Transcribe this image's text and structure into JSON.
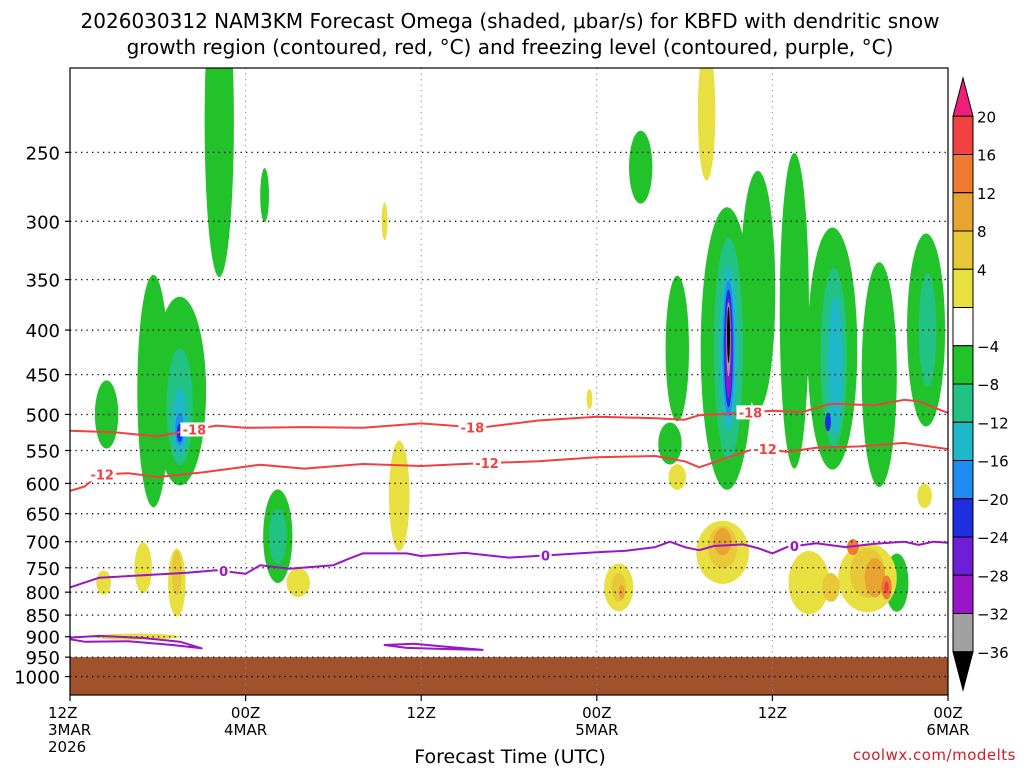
{
  "chart_data": {
    "type": "heatmap",
    "title": {
      "line1": "2026030312 NAM3KM Forecast Omega (shaded, μbar/s) for KBFD with dendritic snow",
      "line2": "growth region (contoured, red, °C) and freezing level (contoured, purple, °C)"
    },
    "xlabel": "Forecast Time (UTC)",
    "credit": "coolwx.com/modelts",
    "x_range_hours": [
      0,
      60
    ],
    "x_ticks": [
      {
        "hour": 0,
        "lines": [
          "12Z",
          "3MAR",
          "2026"
        ]
      },
      {
        "hour": 12,
        "lines": [
          "00Z",
          "4MAR"
        ]
      },
      {
        "hour": 24,
        "lines": [
          "12Z"
        ]
      },
      {
        "hour": 36,
        "lines": [
          "00Z",
          "5MAR"
        ]
      },
      {
        "hour": 48,
        "lines": [
          "12Z"
        ]
      },
      {
        "hour": 60,
        "lines": [
          "00Z",
          "6MAR"
        ]
      }
    ],
    "y_axis": {
      "scale": "log",
      "range_hpa": [
        1050,
        200
      ],
      "ticks": [
        250,
        300,
        350,
        400,
        450,
        500,
        550,
        600,
        650,
        700,
        750,
        800,
        850,
        900,
        950,
        1000
      ]
    },
    "grid": true,
    "colorbar": {
      "labels": [
        "20",
        "16",
        "12",
        "8",
        "4",
        "−4",
        "−8",
        "−12",
        "−16",
        "−20",
        "−24",
        "−28",
        "−32",
        "−36"
      ],
      "colors": [
        "#f0207a",
        "#f04040",
        "#f07a30",
        "#e8a430",
        "#e8c838",
        "#e8e040",
        "#ffffff",
        "#22c22a",
        "#22c285",
        "#1eb8c8",
        "#1e8cf0",
        "#1e2ee0",
        "#6e1ed8",
        "#9a14c8",
        "#a0a0a0",
        "#000000"
      ]
    },
    "ground": {
      "color": "#a0522d",
      "top_hpa": 950
    },
    "contours": [
      {
        "group": "dendritic",
        "color": "#f04040",
        "label": "-18",
        "labels_at_hours": [
          8.5,
          27.5,
          46.5
        ],
        "points": [
          [
            0,
            522
          ],
          [
            3,
            524
          ],
          [
            6,
            530
          ],
          [
            8,
            522
          ],
          [
            10,
            515
          ],
          [
            12,
            518
          ],
          [
            16,
            517
          ],
          [
            20,
            518
          ],
          [
            24,
            512
          ],
          [
            28,
            518
          ],
          [
            32,
            508
          ],
          [
            36,
            503
          ],
          [
            40,
            505
          ],
          [
            42,
            507
          ],
          [
            43,
            501
          ],
          [
            46,
            498
          ],
          [
            48,
            495
          ],
          [
            50,
            497
          ],
          [
            52,
            486
          ],
          [
            55,
            488
          ],
          [
            57,
            481
          ],
          [
            58,
            483
          ],
          [
            60,
            498
          ]
        ]
      },
      {
        "group": "dendritic",
        "color": "#f04040",
        "label": "-12",
        "labels_at_hours": [
          2.2,
          28.5,
          47.5
        ],
        "points": [
          [
            0,
            612
          ],
          [
            1,
            605
          ],
          [
            2,
            586
          ],
          [
            4,
            584
          ],
          [
            6,
            590
          ],
          [
            9,
            583
          ],
          [
            11,
            577
          ],
          [
            13,
            571
          ],
          [
            16,
            577
          ],
          [
            20,
            570
          ],
          [
            24,
            573
          ],
          [
            28,
            569
          ],
          [
            32,
            566
          ],
          [
            36,
            560
          ],
          [
            40,
            558
          ],
          [
            42,
            566
          ],
          [
            43,
            575
          ],
          [
            45,
            560
          ],
          [
            47,
            546
          ],
          [
            49,
            552
          ],
          [
            51,
            546
          ],
          [
            54,
            544
          ],
          [
            57,
            539
          ],
          [
            59,
            545
          ],
          [
            60,
            548
          ]
        ]
      },
      {
        "group": "freezing",
        "color": "#9a14c8",
        "label": "0",
        "labels_at_hours": [
          10.5,
          32.5,
          49.5
        ],
        "points": [
          [
            0,
            790
          ],
          [
            1,
            780
          ],
          [
            2,
            770
          ],
          [
            5,
            765
          ],
          [
            8,
            760
          ],
          [
            10,
            755
          ],
          [
            12,
            762
          ],
          [
            13,
            745
          ],
          [
            15,
            752
          ],
          [
            18,
            745
          ],
          [
            19,
            733
          ],
          [
            20,
            722
          ],
          [
            23,
            722
          ],
          [
            24,
            727
          ],
          [
            27,
            721
          ],
          [
            30,
            730
          ],
          [
            33,
            725
          ],
          [
            36,
            720
          ],
          [
            38,
            717
          ],
          [
            40,
            710
          ],
          [
            41,
            700
          ],
          [
            42,
            710
          ],
          [
            43,
            716
          ],
          [
            44,
            708
          ],
          [
            46,
            705
          ],
          [
            47,
            712
          ],
          [
            48,
            722
          ],
          [
            49,
            710
          ],
          [
            51,
            703
          ],
          [
            53,
            710
          ],
          [
            55,
            704
          ],
          [
            57,
            700
          ],
          [
            58,
            706
          ],
          [
            59,
            700
          ],
          [
            60,
            702
          ]
        ]
      },
      {
        "group": "freezing",
        "color": "#9a14c8",
        "closed": true,
        "label": "",
        "labels_at_hours": [],
        "points": [
          [
            -0.5,
            903
          ],
          [
            2,
            898
          ],
          [
            5,
            903
          ],
          [
            7.5,
            912
          ],
          [
            9.0,
            928
          ],
          [
            7,
            920
          ],
          [
            4,
            911
          ],
          [
            1,
            912
          ]
        ]
      },
      {
        "group": "freezing",
        "color": "#9a14c8",
        "closed": true,
        "label": "",
        "labels_at_hours": [],
        "points": [
          [
            21.5,
            920
          ],
          [
            23.5,
            917
          ],
          [
            26,
            925
          ],
          [
            28.2,
            932
          ],
          [
            26,
            930
          ],
          [
            23,
            927
          ]
        ]
      }
    ],
    "shaded_regions": [
      {
        "color": "#22c22a",
        "h": 5.7,
        "p": 470,
        "w": 1.1,
        "d": 280
      },
      {
        "color": "#22c22a",
        "h": 7.5,
        "p": 470,
        "w": 1.8,
        "d": 230
      },
      {
        "color": "#22c22a",
        "h": 10.2,
        "p": 230,
        "w": 1.0,
        "d": 180
      },
      {
        "color": "#22c22a",
        "h": 13.3,
        "p": 280,
        "w": 0.3,
        "d": 40
      },
      {
        "color": "#22c22a",
        "h": 14.2,
        "p": 690,
        "w": 1.0,
        "d": 170
      },
      {
        "color": "#22c22a",
        "h": 39,
        "p": 260,
        "w": 0.8,
        "d": 50
      },
      {
        "color": "#22c22a",
        "h": 41.5,
        "p": 420,
        "w": 0.8,
        "d": 160
      },
      {
        "color": "#22c22a",
        "h": 44.9,
        "p": 420,
        "w": 1.8,
        "d": 300
      },
      {
        "color": "#22c22a",
        "h": 47,
        "p": 360,
        "w": 1.2,
        "d": 220
      },
      {
        "color": "#22c22a",
        "h": 49.5,
        "p": 380,
        "w": 1.0,
        "d": 300
      },
      {
        "color": "#22c22a",
        "h": 52.1,
        "p": 420,
        "w": 1.7,
        "d": 260
      },
      {
        "color": "#22c22a",
        "h": 55.3,
        "p": 450,
        "w": 1.2,
        "d": 260
      },
      {
        "color": "#22c22a",
        "h": 58.5,
        "p": 400,
        "w": 1.3,
        "d": 200
      },
      {
        "color": "#22c22a",
        "h": 41,
        "p": 540,
        "w": 0.8,
        "d": 60
      },
      {
        "color": "#22c22a",
        "h": 56.5,
        "p": 780,
        "w": 0.8,
        "d": 120
      },
      {
        "color": "#22c22a",
        "h": 2.5,
        "p": 500,
        "w": 0.8,
        "d": 90
      },
      {
        "color": "#22c285",
        "h": 7.5,
        "p": 490,
        "w": 0.9,
        "d": 150
      },
      {
        "color": "#22c285",
        "h": 14.2,
        "p": 690,
        "w": 0.6,
        "d": 100
      },
      {
        "color": "#22c285",
        "h": 45.0,
        "p": 420,
        "w": 1.0,
        "d": 240
      },
      {
        "color": "#22c285",
        "h": 52.2,
        "p": 430,
        "w": 0.9,
        "d": 200
      },
      {
        "color": "#22c285",
        "h": 58.6,
        "p": 400,
        "w": 0.6,
        "d": 120
      },
      {
        "color": "#1eb8c8",
        "h": 7.5,
        "p": 510,
        "w": 0.5,
        "d": 90
      },
      {
        "color": "#1eb8c8",
        "h": 45.0,
        "p": 420,
        "w": 0.6,
        "d": 180
      },
      {
        "color": "#1eb8c8",
        "h": 52.3,
        "p": 440,
        "w": 0.5,
        "d": 160
      },
      {
        "color": "#1e8cf0",
        "h": 7.5,
        "p": 520,
        "w": 0.3,
        "d": 45
      },
      {
        "color": "#1e8cf0",
        "h": 45.0,
        "p": 420,
        "w": 0.4,
        "d": 150
      },
      {
        "color": "#1e2ee0",
        "h": 7.5,
        "p": 525,
        "w": 0.2,
        "d": 25
      },
      {
        "color": "#1e2ee0",
        "h": 45.0,
        "p": 420,
        "w": 0.3,
        "d": 130
      },
      {
        "color": "#1e2ee0",
        "h": 51.8,
        "p": 510,
        "w": 0.2,
        "d": 25
      },
      {
        "color": "#9a14c8",
        "h": 45.0,
        "p": 420,
        "w": 0.22,
        "d": 110
      },
      {
        "color": "#a0a0a0",
        "h": 45.0,
        "p": 410,
        "w": 0.15,
        "d": 80
      },
      {
        "color": "#000000",
        "h": 45.0,
        "p": 405,
        "w": 0.1,
        "d": 60
      },
      {
        "color": "#e8e040",
        "h": 2.3,
        "p": 780,
        "w": 0.5,
        "d": 50
      },
      {
        "color": "#e8e040",
        "h": 4.5,
        "p": 900,
        "w": 3.0,
        "d": 15
      },
      {
        "color": "#e8e040",
        "h": 5.0,
        "p": 750,
        "w": 0.6,
        "d": 100
      },
      {
        "color": "#e8e040",
        "h": 7.3,
        "p": 780,
        "w": 0.6,
        "d": 140
      },
      {
        "color": "#e8e040",
        "h": 15.6,
        "p": 780,
        "w": 0.8,
        "d": 60
      },
      {
        "color": "#e8e040",
        "h": 21.5,
        "p": 300,
        "w": 0.2,
        "d": 30
      },
      {
        "color": "#e8e040",
        "h": 22.5,
        "p": 620,
        "w": 0.7,
        "d": 180
      },
      {
        "color": "#e8e040",
        "h": 35.5,
        "p": 480,
        "w": 0.2,
        "d": 25
      },
      {
        "color": "#e8e040",
        "h": 37.5,
        "p": 790,
        "w": 1.0,
        "d": 100
      },
      {
        "color": "#e8e040",
        "h": 43.5,
        "p": 225,
        "w": 0.6,
        "d": 80
      },
      {
        "color": "#e8e040",
        "h": 44.6,
        "p": 720,
        "w": 1.8,
        "d": 120
      },
      {
        "color": "#e8e040",
        "h": 41.5,
        "p": 590,
        "w": 0.6,
        "d": 40
      },
      {
        "color": "#e8e040",
        "h": 50.5,
        "p": 780,
        "w": 1.4,
        "d": 130
      },
      {
        "color": "#e8e040",
        "h": 54.5,
        "p": 770,
        "w": 2.0,
        "d": 140
      },
      {
        "color": "#e8e040",
        "h": 58.4,
        "p": 620,
        "w": 0.5,
        "d": 40
      },
      {
        "color": "#e8c838",
        "h": 7.3,
        "p": 760,
        "w": 0.35,
        "d": 90
      },
      {
        "color": "#e8c838",
        "h": 37.5,
        "p": 790,
        "w": 0.5,
        "d": 60
      },
      {
        "color": "#e8c838",
        "h": 44.6,
        "p": 710,
        "w": 1.0,
        "d": 80
      },
      {
        "color": "#e8c838",
        "h": 54.5,
        "p": 760,
        "w": 1.2,
        "d": 100
      },
      {
        "color": "#e8c838",
        "h": 52.0,
        "p": 790,
        "w": 0.6,
        "d": 60
      },
      {
        "color": "#e8a430",
        "h": 44.6,
        "p": 700,
        "w": 0.6,
        "d": 50
      },
      {
        "color": "#e8a430",
        "h": 55.0,
        "p": 770,
        "w": 0.7,
        "d": 80
      },
      {
        "color": "#e8a430",
        "h": 37.7,
        "p": 800,
        "w": 0.2,
        "d": 30
      },
      {
        "color": "#f07a30",
        "h": 55.8,
        "p": 790,
        "w": 0.35,
        "d": 50
      },
      {
        "color": "#f07a30",
        "h": 53.5,
        "p": 710,
        "w": 0.4,
        "d": 30
      },
      {
        "color": "#f04040",
        "h": 55.8,
        "p": 790,
        "w": 0.15,
        "d": 25
      }
    ]
  }
}
